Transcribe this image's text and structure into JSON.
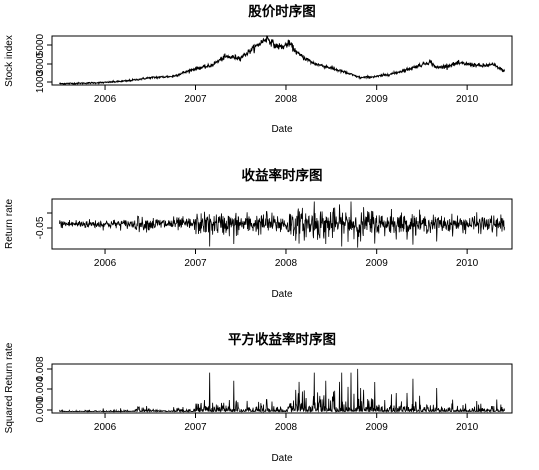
{
  "chart_data": [
    {
      "type": "line",
      "title": "股价时序图",
      "xlabel": "Date",
      "ylabel": "Stock index",
      "x_ticks": [
        "2006",
        "2007",
        "2008",
        "2009",
        "2010"
      ],
      "y_ticks": [
        "1000",
        "3000",
        "5000"
      ],
      "xlim": [
        "2005-06-01",
        "2010-07-01"
      ],
      "ylim": [
        900,
        6300
      ],
      "grid": false,
      "series": [
        {
          "x": [
            "2005-07-01",
            "2005-10-01",
            "2006-01-01",
            "2006-04-01",
            "2006-07-01",
            "2006-10-01",
            "2007-01-01",
            "2007-03-01",
            "2007-05-01",
            "2007-07-01",
            "2007-08-01",
            "2007-09-15",
            "2007-10-16",
            "2007-11-20",
            "2007-12-20",
            "2008-01-14",
            "2008-02-20",
            "2008-04-20",
            "2008-06-15",
            "2008-08-15",
            "2008-10-28",
            "2009-01-05",
            "2009-03-15",
            "2009-05-15",
            "2009-08-04",
            "2009-09-01",
            "2009-10-15",
            "2009-11-24",
            "2010-01-05",
            "2010-03-01",
            "2010-04-15",
            "2010-05-20",
            "2010-06-01"
          ],
          "values": [
            1050,
            1100,
            1180,
            1350,
            1700,
            1850,
            2700,
            3000,
            4000,
            3900,
            4500,
            5400,
            6100,
            5200,
            5100,
            5500,
            4300,
            3300,
            2900,
            2400,
            1700,
            1850,
            2200,
            2700,
            3450,
            2800,
            3000,
            3300,
            3200,
            3000,
            3150,
            2600,
            2450
          ]
        }
      ]
    },
    {
      "type": "line",
      "title": "收益率时序图",
      "xlabel": "Date",
      "ylabel": "Return rate",
      "x_ticks": [
        "2006",
        "2007",
        "2008",
        "2009",
        "2010"
      ],
      "y_ticks": [
        "-0.05",
        ""
      ],
      "xlim": [
        "2005-06-01",
        "2010-07-01"
      ],
      "ylim": [
        -0.1,
        0.1
      ],
      "grid": false,
      "series": [
        {
          "x": [
            "2005-07-01",
            "2006-05-15",
            "2007-02-27",
            "2007-06-04",
            "2007-10-15",
            "2008-04-24",
            "2008-06-10",
            "2008-09-19",
            "2008-10-28",
            "2009-03-01",
            "2009-08-31",
            "2010-05-01",
            "2010-06-01"
          ],
          "values": [
            0.0,
            0.03,
            -0.09,
            -0.08,
            0.05,
            0.09,
            -0.08,
            0.09,
            -0.07,
            0.06,
            -0.07,
            -0.05,
            0.0
          ]
        }
      ]
    },
    {
      "type": "line",
      "title": "平方收益率时序图",
      "xlabel": "Date",
      "ylabel": "Squared Return rate",
      "x_ticks": [
        "2006",
        "2007",
        "2008",
        "2009",
        "2010"
      ],
      "y_ticks": [
        "0.000",
        "0.004",
        "0.008"
      ],
      "xlim": [
        "2005-06-01",
        "2010-07-01"
      ],
      "ylim": [
        -0.0003,
        0.0099
      ],
      "grid": false,
      "series": [
        {
          "x": [
            "2005-07-01",
            "2006-05-15",
            "2007-02-27",
            "2007-06-04",
            "2007-10-15",
            "2008-04-24",
            "2008-06-10",
            "2008-09-19",
            "2008-10-28",
            "2009-03-01",
            "2009-08-31",
            "2010-05-01",
            "2010-06-01"
          ],
          "values": [
            0.0,
            0.0009,
            0.0086,
            0.0072,
            0.0025,
            0.0081,
            0.0064,
            0.0083,
            0.0049,
            0.0036,
            0.0049,
            0.0025,
            0.0
          ]
        }
      ]
    }
  ]
}
